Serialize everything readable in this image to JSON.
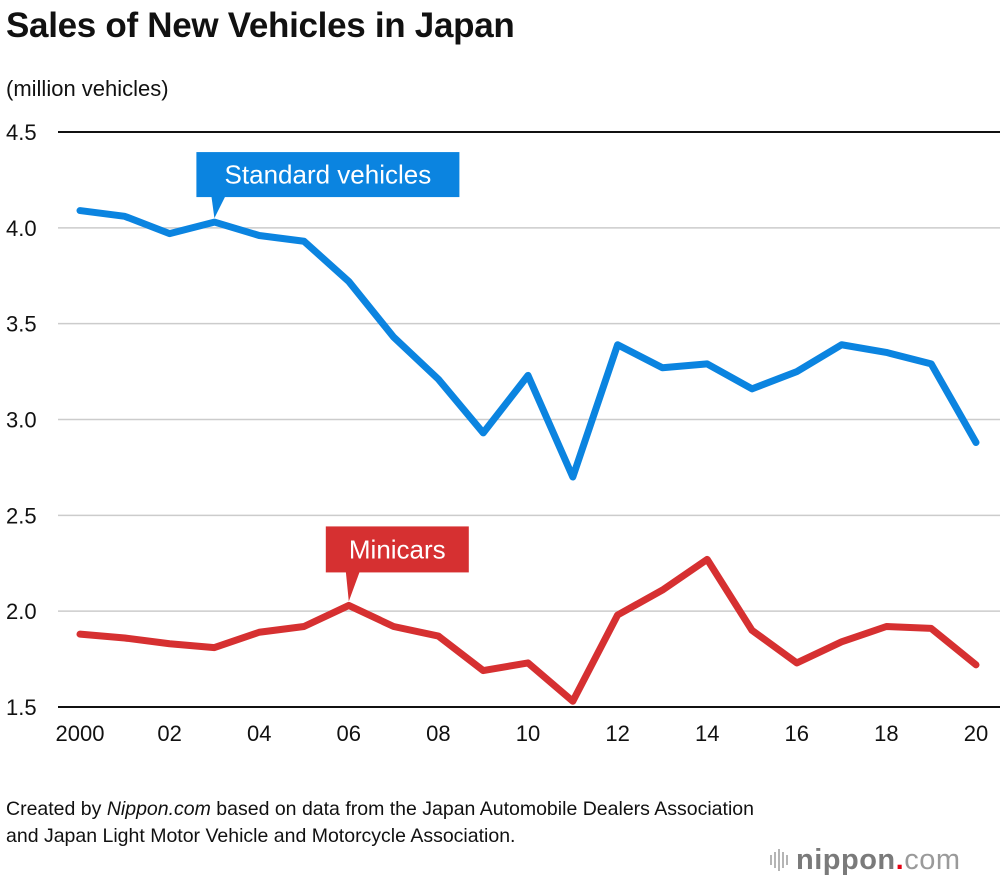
{
  "chart_data": {
    "type": "line",
    "title": "Sales of New Vehicles in Japan",
    "ylabel": "(million vehicles)",
    "xlabel": "",
    "ylim": [
      1.5,
      4.5
    ],
    "yticks": [
      "1.5",
      "2.0",
      "2.5",
      "3.0",
      "3.5",
      "4.0",
      "4.5"
    ],
    "x": [
      2000,
      2001,
      2002,
      2003,
      2004,
      2005,
      2006,
      2007,
      2008,
      2009,
      2010,
      2011,
      2012,
      2013,
      2014,
      2015,
      2016,
      2017,
      2018,
      2019,
      2020
    ],
    "xticks": [
      {
        "year": 2000,
        "label": "2000"
      },
      {
        "year": 2002,
        "label": "02"
      },
      {
        "year": 2004,
        "label": "04"
      },
      {
        "year": 2006,
        "label": "06"
      },
      {
        "year": 2008,
        "label": "08"
      },
      {
        "year": 2010,
        "label": "10"
      },
      {
        "year": 2012,
        "label": "12"
      },
      {
        "year": 2014,
        "label": "14"
      },
      {
        "year": 2016,
        "label": "16"
      },
      {
        "year": 2018,
        "label": "18"
      },
      {
        "year": 2020,
        "label": "20"
      }
    ],
    "grid": true,
    "series": [
      {
        "name": "Standard vehicles",
        "color": "#0B84E0",
        "label_anchor_year": 2003,
        "values": [
          4.09,
          4.06,
          3.97,
          4.03,
          3.96,
          3.93,
          3.72,
          3.43,
          3.21,
          2.93,
          3.23,
          2.7,
          3.39,
          3.27,
          3.29,
          3.16,
          3.25,
          3.39,
          3.35,
          3.29,
          2.88
        ]
      },
      {
        "name": "Minicars",
        "color": "#D63031",
        "label_anchor_year": 2006,
        "values": [
          1.88,
          1.86,
          1.83,
          1.81,
          1.89,
          1.92,
          2.03,
          1.92,
          1.87,
          1.69,
          1.73,
          1.53,
          1.98,
          2.11,
          2.27,
          1.9,
          1.73,
          1.84,
          1.92,
          1.91,
          1.72
        ]
      }
    ]
  },
  "source": {
    "prefix": "Created by ",
    "brand": "Nippon.com",
    "suffix": " based on data from the Japan Automobile Dealers Association and Japan Light Motor Vehicle and Motorcycle Association."
  },
  "logo": {
    "name": "nippon",
    "dot": ".",
    "tld": "com"
  }
}
